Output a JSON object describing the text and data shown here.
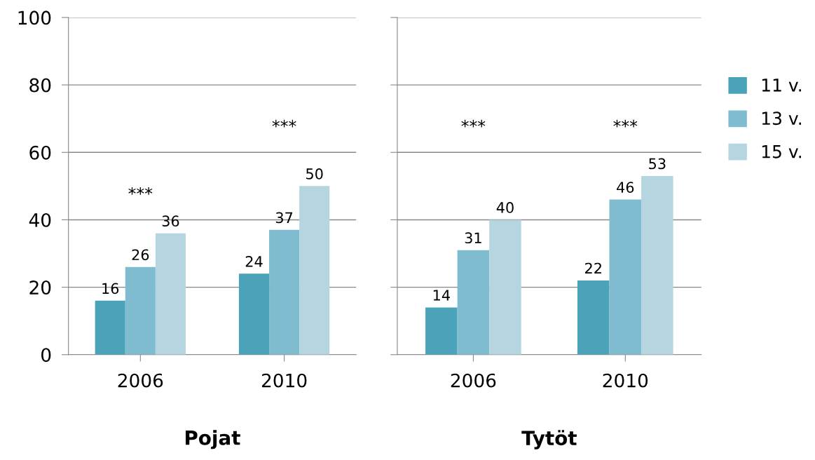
{
  "chart_data": [
    {
      "type": "bar",
      "xlabel": "Pojat",
      "categories": [
        "2006",
        "2010"
      ],
      "series": [
        {
          "name": "11 v.",
          "color": "#4aa3b8",
          "values": [
            16,
            24
          ]
        },
        {
          "name": "13 v.",
          "color": "#7fbcd0",
          "values": [
            26,
            37
          ]
        },
        {
          "name": "15 v.",
          "color": "#b5d6e0",
          "values": [
            36,
            50
          ]
        }
      ],
      "ylim": [
        0,
        100
      ],
      "yticks": [
        0,
        20,
        40,
        60,
        80,
        100
      ],
      "grid": "y",
      "data_labels": true,
      "legend": "right",
      "annotations": [
        "***",
        "***"
      ]
    },
    {
      "type": "bar",
      "xlabel": "Tytöt",
      "categories": [
        "2006",
        "2010"
      ],
      "series": [
        {
          "color": "#4aa3b8",
          "values": [
            14,
            22
          ]
        },
        {
          "color": "#7fbcd0",
          "values": [
            31,
            46
          ]
        },
        {
          "color": "#b5d6e0",
          "values": [
            40,
            53
          ]
        }
      ],
      "ylim": [
        0,
        100
      ],
      "yticks": [
        0,
        20,
        40,
        60,
        80,
        100
      ],
      "grid": "y",
      "data_labels": true,
      "tick_labels": "x",
      "annotations": [
        "***",
        "***"
      ]
    }
  ]
}
